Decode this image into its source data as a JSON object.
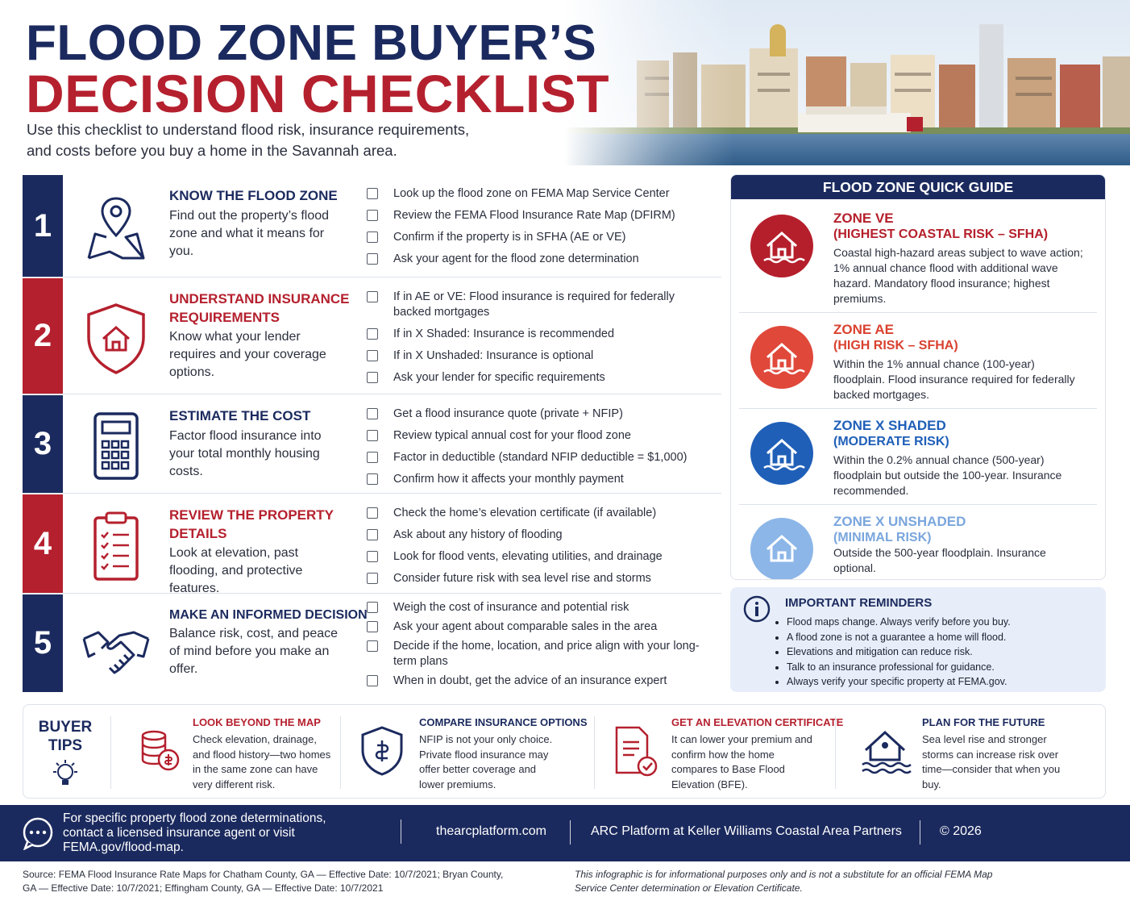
{
  "header": {
    "title_line1": "FLOOD ZONE BUYER’S",
    "title_line2": "DECISION CHECKLIST",
    "subtitle": "Use this checklist to understand flood risk, insurance requirements, and costs before you buy a home in the Savannah area."
  },
  "steps": [
    {
      "number": 1,
      "title": "KNOW THE FLOOD ZONE",
      "description": "Find out the property’s flood zone and what it means for you.",
      "items": [
        "Look up the flood zone on FEMA Map Service Center",
        "Review the FEMA Flood Insurance Rate Map (DFIRM)",
        "Confirm if the property is in SFHA (AE or VE)",
        "Ask your agent for the flood zone determination"
      ]
    },
    {
      "number": 2,
      "title": "UNDERSTAND INSURANCE REQUIREMENTS",
      "description": "Know what your lender requires and your coverage options.",
      "items": [
        "If in AE or VE: Flood insurance is required for federally backed mortgages",
        "If in X Shaded: Insurance is recommended",
        "If in X Unshaded: Insurance is optional",
        "Ask your lender for specific requirements"
      ]
    },
    {
      "number": 3,
      "title": "ESTIMATE THE COST",
      "description": "Factor flood insurance into your total monthly housing costs.",
      "items": [
        "Get a flood insurance quote (private + NFIP)",
        "Review typical annual cost for your flood zone",
        "Factor in deductible (standard NFIP deductible = $1,000)",
        "Confirm how it affects your monthly payment"
      ]
    },
    {
      "number": 4,
      "title": "REVIEW THE PROPERTY DETAILS",
      "description": "Look at elevation, past flooding, and protective features.",
      "items": [
        "Check the home’s elevation certificate (if available)",
        "Ask about any history of flooding",
        "Look for flood vents, elevating utilities, and drainage",
        "Consider future risk with sea level rise and storms"
      ]
    },
    {
      "number": 5,
      "title": "MAKE AN INFORMED DECISION",
      "description": "Balance risk, cost, and peace of mind before you make an offer.",
      "items": [
        "Weigh the cost of insurance and potential risk",
        "Ask your agent about comparable sales in the area",
        "Decide if the home, location, and price align with your long-term plans",
        "When in doubt, get the advice of an insurance expert"
      ]
    }
  ],
  "quick_guide": {
    "title": "FLOOD ZONE QUICK GUIDE",
    "zones": [
      {
        "name": "ZONE VE",
        "risk": "(HIGHEST COASTAL RISK – SFHA)",
        "description": "Coastal high-hazard areas subject to wave action; 1% annual chance flood with additional wave hazard. Mandatory flood insurance; highest premiums."
      },
      {
        "name": "ZONE AE",
        "risk": "(HIGH RISK – SFHA)",
        "description": "Within the 1% annual chance (100-year) floodplain. Flood insurance required for federally backed mortgages."
      },
      {
        "name": "ZONE X SHADED",
        "risk": "(MODERATE RISK)",
        "description": "Within the 0.2% annual chance (500-year) floodplain but outside the 100-year. Insurance recommended."
      },
      {
        "name": "ZONE X UNSHADED",
        "risk": "(MINIMAL RISK)",
        "description": "Outside the 500-year floodplain. Insurance optional."
      }
    ]
  },
  "reminders": {
    "title": "IMPORTANT REMINDERS",
    "items": [
      "Flood maps change. Always verify before you buy.",
      "A flood zone is not a guarantee a home will flood.",
      "Elevations and mitigation can reduce risk.",
      "Talk to an insurance professional for guidance.",
      "Always verify your specific property at FEMA.gov."
    ]
  },
  "buyer_tips": {
    "title": "BUYER TIPS",
    "tips": [
      {
        "title": "LOOK BEYOND THE MAP",
        "text": "Check elevation, drainage, and flood history—two homes in the same zone can have very different risk."
      },
      {
        "title": "COMPARE INSURANCE OPTIONS",
        "text": "NFIP is not your only choice. Private flood insurance may offer better coverage and lower premiums."
      },
      {
        "title": "GET AN ELEVATION CERTIFICATE",
        "text": "It can lower your premium and confirm how the home compares to Base Flood Elevation (BFE)."
      },
      {
        "title": "PLAN FOR THE FUTURE",
        "text": "Sea level rise and stronger storms can increase risk over time—consider that when you buy."
      }
    ]
  },
  "footer": {
    "contact": "For specific property flood zone determinations, contact a licensed insurance agent or visit FEMA.gov/flood-map.",
    "website": "thearcplatform.com",
    "company": "ARC Platform at Keller Williams Coastal Area Partners",
    "copyright": "© 2026"
  },
  "source": "Source: FEMA Flood Insurance Rate Maps for Chatham County, GA — Effective Date: 10/7/2021; Bryan County, GA — Effective Date: 10/7/2021; Effingham County, GA — Effective Date: 10/7/2021",
  "disclaimer": "This infographic is for informational purposes only and is not a substitute for an official FEMA Map Service Center determination or Elevation Certificate."
}
